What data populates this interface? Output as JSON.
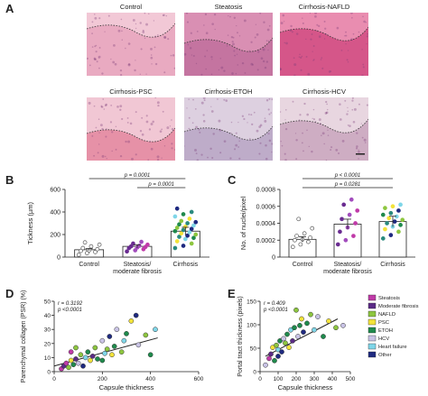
{
  "panels": {
    "A": {
      "letter": "A",
      "images": [
        {
          "label": "Control",
          "stain": "#f2c8d6",
          "tissue": "#e8a4bd"
        },
        {
          "label": "Steatosis",
          "stain": "#d98fb3",
          "tissue": "#c0709c"
        },
        {
          "label": "Cirrhosis-NAFLD",
          "stain": "#e98db0",
          "tissue": "#d14c82"
        },
        {
          "label": "Cirrhosis-PSC",
          "stain": "#f1c7d4",
          "tissue": "#e4879f"
        },
        {
          "label": "Cirrhosis-ETOH",
          "stain": "#ddd0e0",
          "tissue": "#b8a6c4"
        },
        {
          "label": "Cirrhosis-HCV",
          "stain": "#e8d6e0",
          "tissue": "#c9a6bd"
        }
      ]
    },
    "B": {
      "letter": "B",
      "ylabel": "Tickness (µm)",
      "yticks": [
        "0",
        "200",
        "400",
        "600"
      ],
      "categories": [
        "Control",
        "Steatosis/\nmoderate fibrosis",
        "Cirrhosis"
      ],
      "p_values": [
        "p = 0.0001",
        "p = 0.0001"
      ]
    },
    "C": {
      "letter": "C",
      "ylabel": "No. of nuclei/pixel",
      "yticks": [
        "0",
        "0.0002",
        "0.0004",
        "0.0006",
        "0.0008"
      ],
      "categories": [
        "Control",
        "Steatosis/\nmoderate fibrosis",
        "Cirrhosis"
      ],
      "p_values": [
        "p < 0.0001",
        "p = 0.0281"
      ]
    },
    "D": {
      "letter": "D",
      "ylabel": "Parenchymal collagen (PSR) (%)",
      "xlabel": "Capsule thickness",
      "xticks": [
        "0",
        "200",
        "400",
        "600"
      ],
      "yticks": [
        "0",
        "10",
        "20",
        "30",
        "40",
        "50"
      ],
      "stat_r": "r = 0.3192",
      "stat_p": "p <0.0001"
    },
    "E": {
      "letter": "E",
      "ylabel": "Portal tract thickness (pixels)",
      "xlabel": "Capsule thickness",
      "xticks": [
        "0",
        "100",
        "200",
        "300",
        "400",
        "500"
      ],
      "yticks": [
        "0",
        "50",
        "100",
        "150"
      ],
      "stat_r": "r = 0.409",
      "stat_p": "p <0.0001"
    }
  },
  "legend": [
    {
      "label": "Steatosis",
      "color": "#c03aa8"
    },
    {
      "label": "Moderate fibrosis",
      "color": "#5b2a86"
    },
    {
      "label": "NAFLD",
      "color": "#8dc63f"
    },
    {
      "label": "PSC",
      "color": "#f3e33a"
    },
    {
      "label": "ETOH",
      "color": "#1f8a4c"
    },
    {
      "label": "HCV",
      "color": "#c9c3e6"
    },
    {
      "label": "Heart failure",
      "color": "#7fd6e8"
    },
    {
      "label": "Other",
      "color": "#1f2a80"
    }
  ],
  "chart_data": [
    {
      "type": "bar",
      "panel": "B",
      "ylabel": "Tickness (µm)",
      "categories": [
        "Control",
        "Steatosis/moderate fibrosis",
        "Cirrhosis"
      ],
      "values": [
        65,
        95,
        230
      ],
      "ylim": [
        0,
        600
      ],
      "points": {
        "Control": [
          20,
          35,
          45,
          55,
          60,
          70,
          80,
          95,
          110,
          130
        ],
        "Steatosis/moderate fibrosis": [
          50,
          60,
          70,
          80,
          85,
          90,
          95,
          100,
          110,
          120,
          135
        ],
        "Cirrhosis": [
          80,
          100,
          120,
          140,
          160,
          170,
          180,
          190,
          200,
          210,
          220,
          230,
          240,
          250,
          260,
          270,
          280,
          290,
          300,
          310,
          320,
          340,
          360,
          380,
          400,
          430
        ]
      }
    },
    {
      "type": "bar",
      "panel": "C",
      "ylabel": "No. of nuclei/pixel",
      "categories": [
        "Control",
        "Steatosis/moderate fibrosis",
        "Cirrhosis"
      ],
      "values": [
        0.00021,
        0.00039,
        0.00042
      ],
      "ylim": [
        0,
        0.0008
      ],
      "points": {
        "Control": [
          0.00012,
          0.00015,
          0.00018,
          0.0002,
          0.00021,
          0.00023,
          0.00025,
          0.00028,
          0.00034,
          0.00045
        ],
        "Steatosis/moderate fibrosis": [
          0.00015,
          0.0002,
          0.00025,
          0.0003,
          0.00035,
          0.0004,
          0.00045,
          0.0005,
          0.00055,
          0.00062,
          0.00068
        ],
        "Cirrhosis": [
          0.00022,
          0.00026,
          0.0003,
          0.00033,
          0.00036,
          0.00038,
          0.0004,
          0.00042,
          0.00044,
          0.00046,
          0.00048,
          0.0005,
          0.00052,
          0.00055,
          0.00058,
          0.0006,
          0.00062
        ]
      }
    },
    {
      "type": "scatter",
      "panel": "D",
      "xlabel": "Capsule thickness",
      "ylabel": "Parenchymal collagen (PSR) (%)",
      "xlim": [
        0,
        600
      ],
      "ylim": [
        0,
        50
      ],
      "trend": [
        [
          0,
          4
        ],
        [
          430,
          24
        ]
      ],
      "points": [
        [
          30,
          2,
          0
        ],
        [
          40,
          4,
          1
        ],
        [
          50,
          6,
          0
        ],
        [
          60,
          3,
          2
        ],
        [
          70,
          8,
          3
        ],
        [
          80,
          5,
          4
        ],
        [
          90,
          9,
          1
        ],
        [
          100,
          6,
          5
        ],
        [
          110,
          12,
          2
        ],
        [
          120,
          4,
          7
        ],
        [
          130,
          10,
          6
        ],
        [
          140,
          14,
          4
        ],
        [
          150,
          8,
          3
        ],
        [
          160,
          11,
          1
        ],
        [
          170,
          17,
          2
        ],
        [
          180,
          9,
          4
        ],
        [
          200,
          22,
          5
        ],
        [
          210,
          13,
          6
        ],
        [
          220,
          16,
          2
        ],
        [
          230,
          25,
          7
        ],
        [
          240,
          12,
          3
        ],
        [
          250,
          18,
          4
        ],
        [
          260,
          30,
          5
        ],
        [
          280,
          14,
          2
        ],
        [
          290,
          22,
          6
        ],
        [
          300,
          27,
          4
        ],
        [
          320,
          36,
          3
        ],
        [
          340,
          40,
          7
        ],
        [
          350,
          19,
          5
        ],
        [
          380,
          26,
          2
        ],
        [
          400,
          12,
          4
        ],
        [
          420,
          30,
          6
        ],
        [
          70,
          14,
          0
        ],
        [
          90,
          17,
          2
        ],
        [
          200,
          8,
          4
        ]
      ]
    },
    {
      "type": "scatter",
      "panel": "E",
      "xlabel": "Capsule thickness",
      "ylabel": "Portal tract thickness (pixels)",
      "xlim": [
        0,
        500
      ],
      "ylim": [
        0,
        160
      ],
      "trend": [
        [
          30,
          35
        ],
        [
          430,
          120
        ]
      ],
      "points": [
        [
          30,
          15,
          5
        ],
        [
          50,
          30,
          0
        ],
        [
          60,
          40,
          1
        ],
        [
          70,
          55,
          3
        ],
        [
          80,
          25,
          4
        ],
        [
          90,
          60,
          2
        ],
        [
          100,
          50,
          6
        ],
        [
          110,
          70,
          4
        ],
        [
          120,
          45,
          7
        ],
        [
          130,
          75,
          5
        ],
        [
          140,
          65,
          2
        ],
        [
          150,
          85,
          4
        ],
        [
          160,
          55,
          3
        ],
        [
          170,
          95,
          6
        ],
        [
          180,
          70,
          1
        ],
        [
          190,
          100,
          4
        ],
        [
          200,
          140,
          2
        ],
        [
          210,
          80,
          5
        ],
        [
          220,
          105,
          4
        ],
        [
          230,
          120,
          3
        ],
        [
          240,
          90,
          7
        ],
        [
          260,
          110,
          4
        ],
        [
          280,
          130,
          2
        ],
        [
          300,
          95,
          6
        ],
        [
          320,
          125,
          5
        ],
        [
          350,
          80,
          4
        ],
        [
          380,
          115,
          3
        ],
        [
          420,
          100,
          2
        ],
        [
          460,
          105,
          5
        ],
        [
          100,
          35,
          7
        ]
      ]
    }
  ]
}
